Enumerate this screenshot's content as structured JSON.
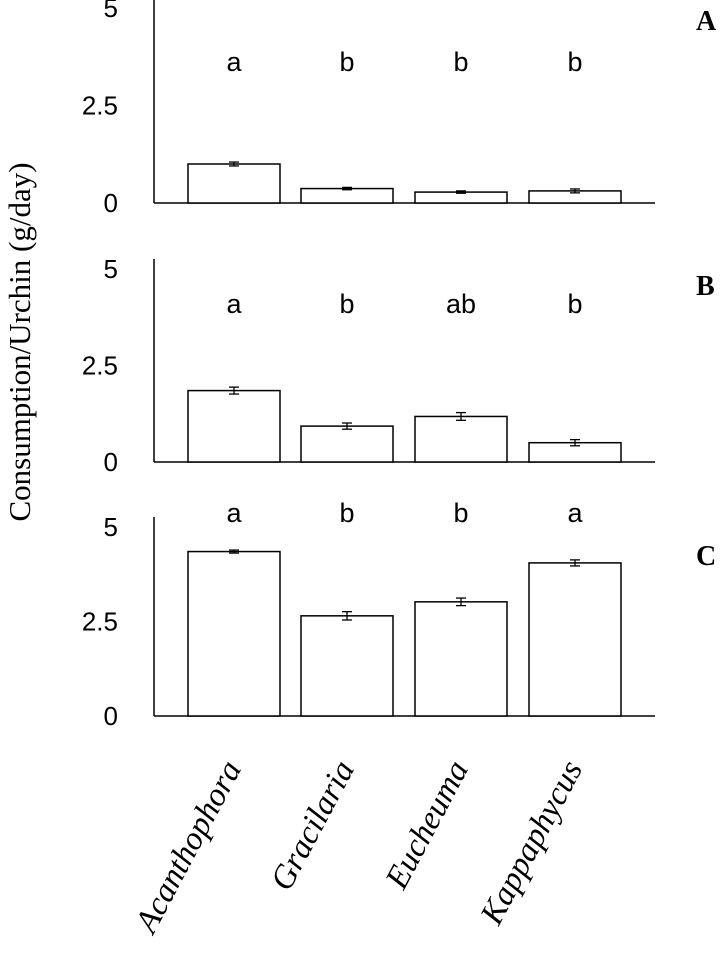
{
  "ylabel": "Consumption/Urchin (g/day)",
  "chart_data": [
    {
      "type": "bar",
      "panel_label": "A",
      "categories": [
        "Acanthophora",
        "Gracilaria",
        "Eucheuma",
        "Kappaphycus"
      ],
      "values": [
        1.0,
        0.37,
        0.28,
        0.31
      ],
      "errors": [
        0.05,
        0.03,
        0.03,
        0.05
      ],
      "letters": [
        "a",
        "b",
        "b",
        "b"
      ],
      "ylim": [
        0,
        5
      ],
      "yticks": [
        "0",
        "2.5",
        "5"
      ]
    },
    {
      "type": "bar",
      "panel_label": "B",
      "categories": [
        "Acanthophora",
        "Gracilaria",
        "Eucheuma",
        "Kappaphycus"
      ],
      "values": [
        1.85,
        0.93,
        1.18,
        0.5
      ],
      "errors": [
        0.09,
        0.08,
        0.1,
        0.08
      ],
      "letters": [
        "a",
        "b",
        "ab",
        "b"
      ],
      "ylim": [
        0,
        5
      ],
      "yticks": [
        "0",
        "2.5",
        "5"
      ]
    },
    {
      "type": "bar",
      "panel_label": "C",
      "categories": [
        "Acanthophora",
        "Gracilaria",
        "Eucheuma",
        "Kappaphycus"
      ],
      "values": [
        4.35,
        2.65,
        3.02,
        4.05
      ],
      "errors": [
        0.04,
        0.11,
        0.1,
        0.08
      ],
      "letters": [
        "a",
        "b",
        "b",
        "a"
      ],
      "ylim": [
        0,
        5
      ],
      "yticks": [
        "0",
        "2.5",
        "5"
      ]
    }
  ]
}
